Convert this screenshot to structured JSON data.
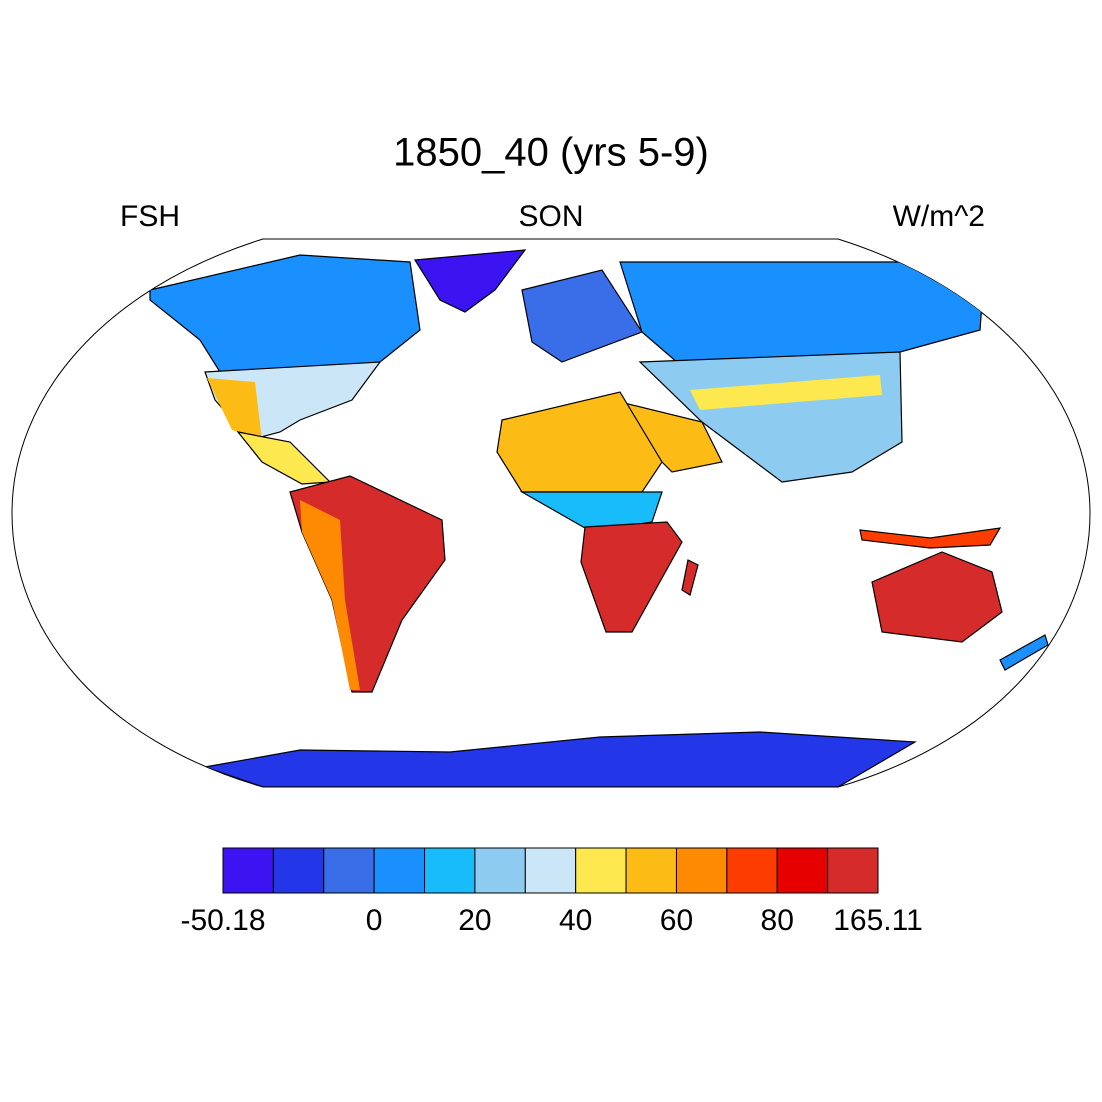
{
  "title": "1850_40 (yrs 5-9)",
  "left_label": "FSH",
  "center_label": "SON",
  "right_label": "W/m^2",
  "colorbar": {
    "colors": [
      "#3c14f2",
      "#2337e8",
      "#3a6ee8",
      "#1a90ff",
      "#18bcfa",
      "#8ecbf0",
      "#cbe7f7",
      "#fde84f",
      "#fdbc15",
      "#fd8a00",
      "#fd3d00",
      "#e60000",
      "#d62b2b"
    ],
    "boundaries": [
      -50.18,
      null,
      null,
      0,
      null,
      20,
      null,
      40,
      null,
      60,
      null,
      80,
      null,
      165.11
    ]
  }
}
